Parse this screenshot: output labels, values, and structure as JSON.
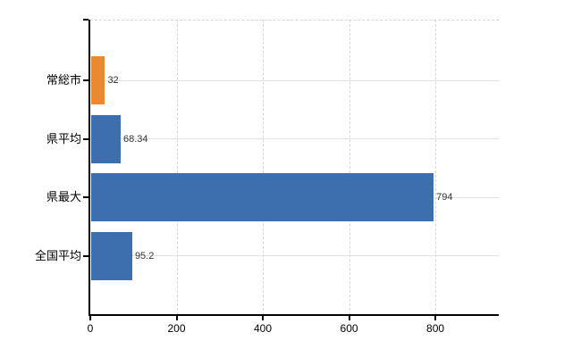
{
  "chart_data": {
    "type": "bar",
    "orientation": "horizontal",
    "title": "",
    "xlabel": "",
    "ylabel": "",
    "categories": [
      "常総市",
      "県平均",
      "県最大",
      "全国平均"
    ],
    "values": [
      32,
      68.34,
      794,
      95.2
    ],
    "value_labels": [
      "32",
      "68.34",
      "794",
      "95.2"
    ],
    "bar_colors": [
      "#EA8931",
      "#3D6FAE",
      "#3D6FAE",
      "#3D6FAE"
    ],
    "x_ticks": [
      0,
      200,
      400,
      600,
      800
    ],
    "x_tick_labels": [
      "0",
      "200",
      "400",
      "600",
      "800"
    ],
    "xlim": [
      0,
      947
    ],
    "grid": true,
    "legend": false
  },
  "colors": {
    "bar_orange": "#EA8931",
    "bar_blue": "#3D6FAE",
    "h_gridline": "#dde4dd",
    "v_gridline": "#d6d6da",
    "axis": "#000000",
    "value_label_text": "#333333",
    "tick_label_text": "#000000"
  }
}
